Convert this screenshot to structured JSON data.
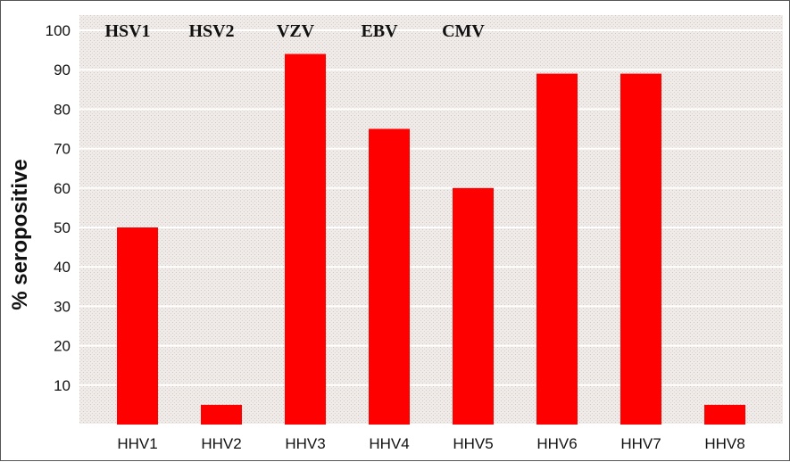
{
  "chart_data": {
    "type": "bar",
    "categories": [
      "HHV1",
      "HHV2",
      "HHV3",
      "HHV4",
      "HHV5",
      "HHV6",
      "HHV7",
      "HHV8"
    ],
    "top_labels": [
      "HSV1",
      "HSV2",
      "VZV",
      "EBV",
      "CMV",
      "",
      "",
      ""
    ],
    "values": [
      50,
      5,
      94,
      75,
      60,
      89,
      89,
      5
    ],
    "title": "",
    "xlabel": "",
    "ylabel": "% seropositive",
    "ylim": [
      0,
      100
    ],
    "yticks": [
      10,
      20,
      30,
      40,
      50,
      60,
      70,
      80,
      90,
      100
    ],
    "grid": true,
    "bar_color": "#ff0000",
    "plot_background": "#ece7e4",
    "grid_color": "#ffffff"
  }
}
